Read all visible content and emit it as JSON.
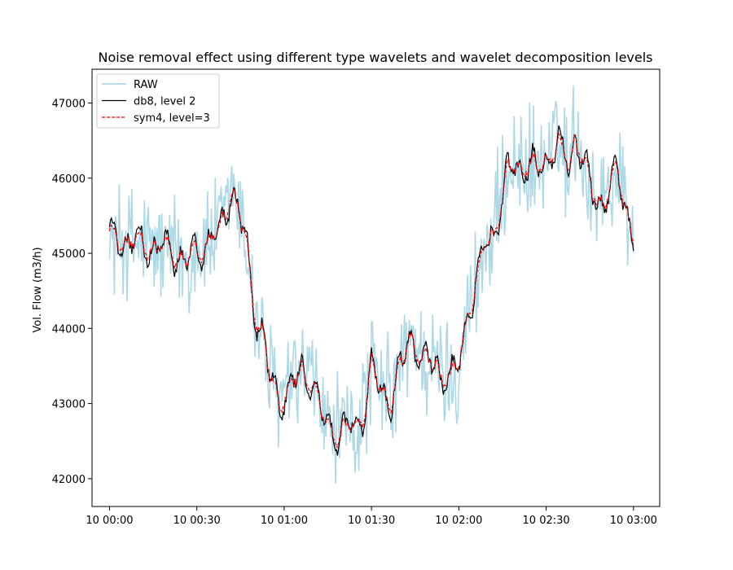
{
  "chart_data": {
    "type": "line",
    "title": "Noise removal effect using different type wavelets and wavelet decomposition levels",
    "xlabel": "",
    "ylabel": "Vol. Flow (m3/h)",
    "x_unit": "minutes from 10 00:00",
    "xlim": [
      -6,
      189
    ],
    "ylim": [
      41630,
      47450
    ],
    "x_ticks": [
      0,
      30,
      60,
      90,
      120,
      150,
      180
    ],
    "x_tick_labels": [
      "10 00:00",
      "10 00:30",
      "10 01:00",
      "10 01:30",
      "10 02:00",
      "10 02:30",
      "10 03:00"
    ],
    "y_ticks": [
      42000,
      43000,
      44000,
      45000,
      46000,
      47000
    ],
    "y_tick_labels": [
      "42000",
      "43000",
      "44000",
      "45000",
      "46000",
      "47000"
    ],
    "grid": false,
    "legend_position": "upper-left",
    "trend_knots": {
      "x": [
        0,
        8,
        20,
        27,
        38,
        42,
        47,
        50,
        53,
        55,
        58,
        62,
        66,
        70,
        74,
        78,
        82,
        85,
        88,
        90,
        93,
        97,
        100,
        104,
        107,
        112,
        117,
        120,
        123,
        126,
        129,
        132,
        135,
        137,
        142,
        147,
        150,
        154,
        158,
        160,
        163,
        166,
        170,
        174,
        177,
        180
      ],
      "y": [
        45200,
        45150,
        45050,
        44900,
        45300,
        45900,
        45100,
        44200,
        43900,
        43300,
        43050,
        43200,
        43400,
        43300,
        42700,
        42600,
        42650,
        42700,
        43000,
        43500,
        43150,
        43100,
        43500,
        43900,
        43600,
        43500,
        43300,
        43500,
        44200,
        44600,
        45100,
        45300,
        45700,
        46100,
        46200,
        46100,
        46300,
        46400,
        46200,
        46600,
        46200,
        45800,
        45700,
        46100,
        45700,
        45200
      ]
    },
    "series": [
      {
        "name": "RAW",
        "color": "#add8e6",
        "style": "solid",
        "noise_amplitude": 700
      },
      {
        "name": "db8, level 2",
        "color": "#000000",
        "style": "solid",
        "noise_amplitude": 260
      },
      {
        "name": "sym4, level=3",
        "color": "#ff0000",
        "style": "dashed",
        "noise_amplitude": 170
      }
    ]
  }
}
